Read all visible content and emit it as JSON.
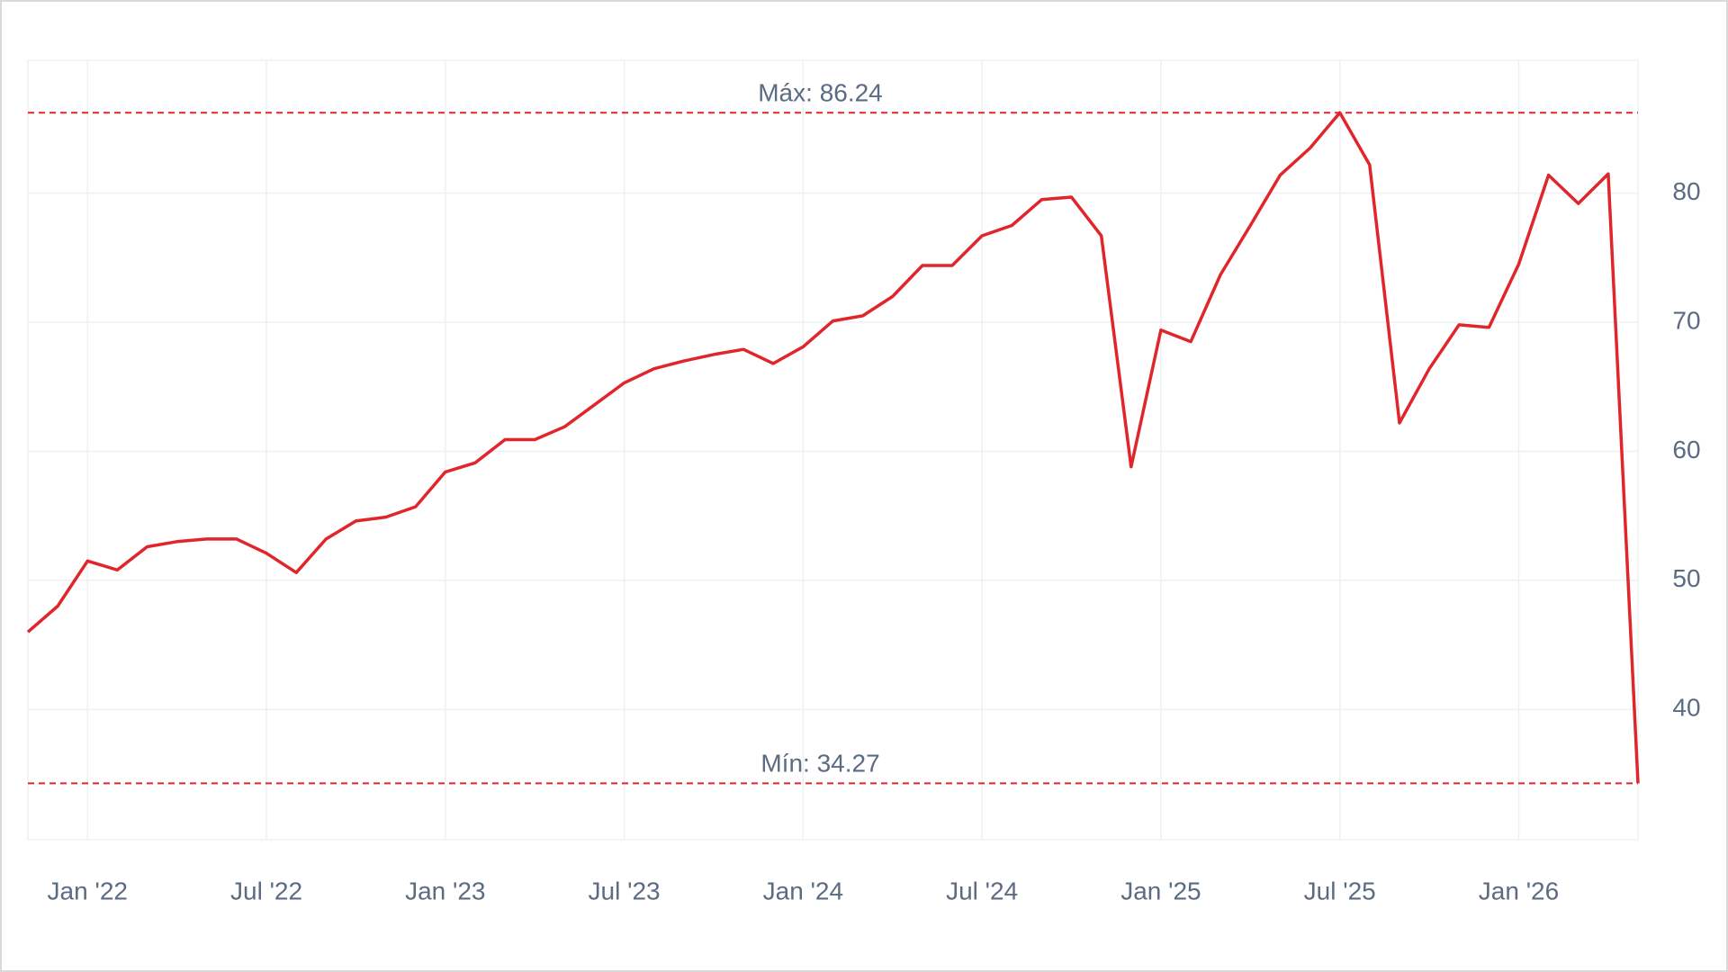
{
  "chart_data": {
    "type": "line",
    "x": [
      "2021-11",
      "2021-12",
      "2022-01",
      "2022-02",
      "2022-03",
      "2022-04",
      "2022-05",
      "2022-06",
      "2022-07",
      "2022-08",
      "2022-09",
      "2022-10",
      "2022-11",
      "2022-12",
      "2023-01",
      "2023-02",
      "2023-03",
      "2023-04",
      "2023-05",
      "2023-06",
      "2023-07",
      "2023-08",
      "2023-09",
      "2023-10",
      "2023-11",
      "2023-12",
      "2024-01",
      "2024-02",
      "2024-03",
      "2024-04",
      "2024-05",
      "2024-06",
      "2024-07",
      "2024-08",
      "2024-09",
      "2024-10",
      "2024-11",
      "2024-12",
      "2025-01",
      "2025-02",
      "2025-03",
      "2025-04",
      "2025-05",
      "2025-06",
      "2025-07",
      "2025-08",
      "2025-09",
      "2025-10",
      "2025-11",
      "2025-12",
      "2026-01",
      "2026-02",
      "2026-03",
      "2026-04",
      "2026-05"
    ],
    "series": [
      {
        "color": "#e0262b",
        "values": [
          46,
          48,
          51.5,
          50.8,
          52.6,
          53,
          53.2,
          53.2,
          52.1,
          50.6,
          53.2,
          54.6,
          54.9,
          55.7,
          58.4,
          59.1,
          60.9,
          60.9,
          61.9,
          63.6,
          65.3,
          66.4,
          67,
          67.5,
          67.9,
          66.8,
          68.1,
          70.1,
          70.5,
          72,
          74.4,
          74.4,
          76.7,
          77.5,
          79.5,
          79.7,
          76.7,
          58.8,
          69.4,
          68.5,
          73.7,
          77.5,
          81.4,
          83.5,
          86.24,
          82.2,
          62.2,
          66.4,
          69.8,
          69.6,
          74.5,
          81.4,
          79.2,
          81.5,
          34.27
        ]
      }
    ],
    "xlim": [
      "2021-11",
      "2026-05"
    ],
    "xticks": [
      {
        "value": "2022-01",
        "label": "Jan '22"
      },
      {
        "value": "2022-07",
        "label": "Jul '22"
      },
      {
        "value": "2023-01",
        "label": "Jan '23"
      },
      {
        "value": "2023-07",
        "label": "Jul '23"
      },
      {
        "value": "2024-01",
        "label": "Jan '24"
      },
      {
        "value": "2024-07",
        "label": "Jul '24"
      },
      {
        "value": "2025-01",
        "label": "Jan '25"
      },
      {
        "value": "2025-07",
        "label": "Jul '25"
      },
      {
        "value": "2026-01",
        "label": "Jan '26"
      }
    ],
    "ylim": [
      29.9,
      90.3
    ],
    "yticks": [
      40,
      50,
      60,
      70,
      80
    ],
    "grid": true,
    "annotations": [
      {
        "value": 86.24,
        "label": "Máx: 86.24"
      },
      {
        "value": 34.27,
        "label": "Mín: 34.27"
      }
    ],
    "annotation_color": "#e0262b"
  }
}
